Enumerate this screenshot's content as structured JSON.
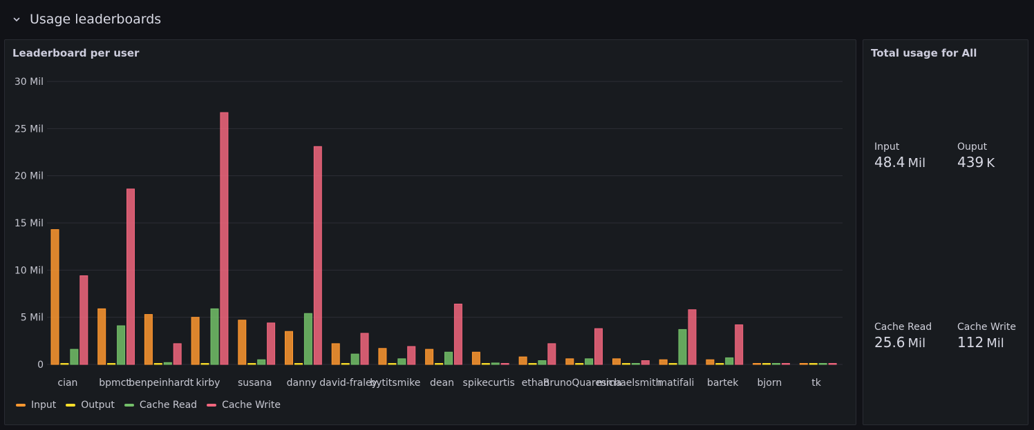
{
  "row": {
    "title": "Usage leaderboards"
  },
  "leaderboard_panel": {
    "title": "Leaderboard per user"
  },
  "totals_panel": {
    "title": "Total usage for All",
    "stats": [
      {
        "label": "Input",
        "value": "48.4",
        "unit": "Mil"
      },
      {
        "label": "Ouput",
        "value": "439",
        "unit": "K"
      },
      {
        "label": "Cache Read",
        "value": "25.6",
        "unit": "Mil"
      },
      {
        "label": "Cache Write",
        "value": "112",
        "unit": "Mil"
      }
    ]
  },
  "chart_data": {
    "type": "bar",
    "title": "Leaderboard per user",
    "ylim": [
      0,
      30000000
    ],
    "yticks": [
      {
        "value": 0,
        "label": "0"
      },
      {
        "value": 5000000,
        "label": "5 Mil"
      },
      {
        "value": 10000000,
        "label": "10 Mil"
      },
      {
        "value": 15000000,
        "label": "15 Mil"
      },
      {
        "value": 20000000,
        "label": "20 Mil"
      },
      {
        "value": 25000000,
        "label": "25 Mil"
      },
      {
        "value": 30000000,
        "label": "30 Mil"
      }
    ],
    "grid": true,
    "legend": "bottom-left",
    "categories": [
      "cian",
      "bpmct",
      "benpeinhardt",
      "kirby",
      "susana",
      "danny",
      "david-fraley",
      "bytitsmike",
      "dean",
      "spikecurtis",
      "ethan",
      "BrunoQuaresma",
      "michaelsmith",
      "matifali",
      "bartek",
      "bjorn",
      "tk"
    ],
    "series": [
      {
        "name": "Input",
        "color": "#ff9830",
        "values": [
          14300000,
          5900000,
          5300000,
          5000000,
          4700000,
          3500000,
          2200000,
          1700000,
          1600000,
          1300000,
          800000,
          600000,
          600000,
          500000,
          500000,
          100000,
          50000
        ]
      },
      {
        "name": "Output",
        "color": "#fade2a",
        "values": [
          60000,
          80000,
          70000,
          80000,
          50000,
          80000,
          40000,
          40000,
          40000,
          30000,
          20000,
          20000,
          20000,
          20000,
          20000,
          10000,
          10000
        ]
      },
      {
        "name": "Cache Read",
        "color": "#73bf69",
        "values": [
          1600000,
          4100000,
          200000,
          5900000,
          500000,
          5400000,
          1100000,
          600000,
          1300000,
          150000,
          400000,
          600000,
          100000,
          3700000,
          700000,
          50000,
          50000
        ]
      },
      {
        "name": "Cache Write",
        "color": "#f2667e",
        "values": [
          9400000,
          18600000,
          2200000,
          26700000,
          4400000,
          23100000,
          3300000,
          1900000,
          6400000,
          0,
          2200000,
          3800000,
          400000,
          5800000,
          4200000,
          100000,
          50000
        ]
      }
    ]
  }
}
